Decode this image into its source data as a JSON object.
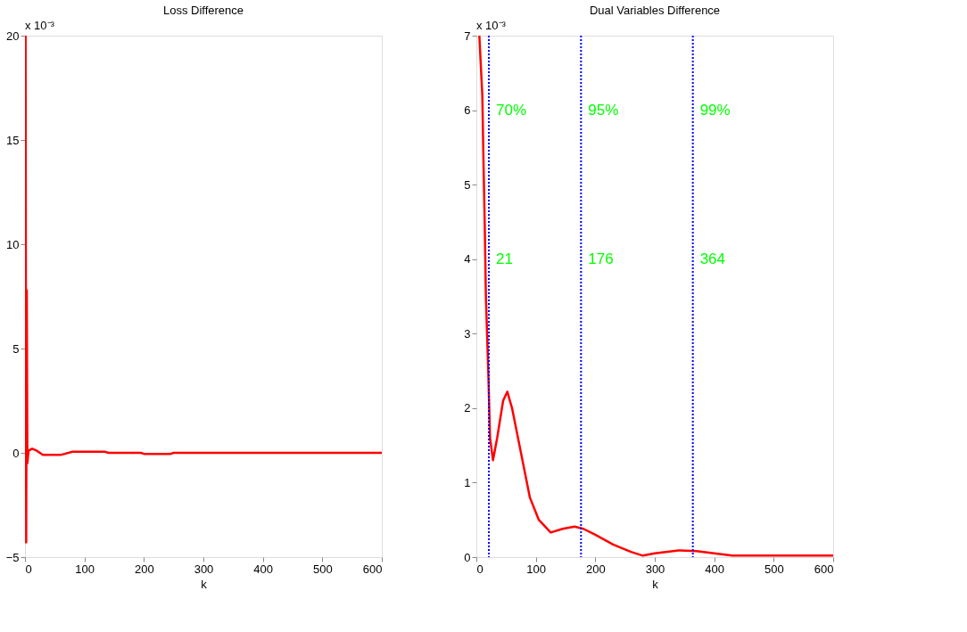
{
  "chart_data": [
    {
      "type": "line",
      "title": "Loss Difference",
      "xlabel": "k",
      "xlim": [
        0,
        600
      ],
      "xticks": [
        0,
        100,
        200,
        300,
        400,
        500,
        600
      ],
      "ylim": [
        -5,
        20
      ],
      "yticks": [
        -5,
        0,
        5,
        10,
        15,
        20
      ],
      "grid": false,
      "marker": "none",
      "line_style": "solid",
      "annotations": [
        "x 10⁻³"
      ],
      "series": [
        {
          "color": "#ff0000",
          "x": [
            0,
            1,
            2,
            3,
            4,
            6,
            12,
            20,
            30,
            60,
            80,
            135,
            140,
            195,
            200,
            245,
            250,
            600
          ],
          "values": [
            20,
            20,
            -4.3,
            7.8,
            -0.5,
            0.1,
            0.2,
            0.1,
            -0.1,
            -0.1,
            0.05,
            0.05,
            0,
            0,
            -0.05,
            -0.05,
            0,
            0
          ]
        }
      ]
    },
    {
      "type": "line",
      "title": "Dual Variables Difference",
      "xlabel": "k",
      "xlim": [
        0,
        600
      ],
      "xticks": [
        0,
        100,
        200,
        300,
        400,
        500,
        600
      ],
      "ylim": [
        0,
        7
      ],
      "yticks": [
        0,
        1,
        2,
        3,
        4,
        5,
        6,
        7
      ],
      "grid": false,
      "marker": "none",
      "line_style": "solid",
      "annotations": [
        "x 10⁻³",
        {
          "text": "70%",
          "x": 21,
          "y": 6
        },
        {
          "text": "95%",
          "x": 176,
          "y": 6
        },
        {
          "text": "99%",
          "x": 364,
          "y": 6
        }
      ],
      "ref_lines": [
        {
          "axis": "x",
          "value": 21,
          "label": "21",
          "color": "#0000ff",
          "line_style": "dotted"
        },
        {
          "axis": "x",
          "value": 176,
          "label": "176",
          "color": "#0000ff",
          "line_style": "dotted"
        },
        {
          "axis": "x",
          "value": 364,
          "label": "364",
          "color": "#0000ff",
          "line_style": "dotted"
        }
      ],
      "series": [
        {
          "color": "#ff0000",
          "x": [
            5,
            10,
            12,
            14,
            16,
            20,
            23,
            28,
            35,
            45,
            52,
            60,
            75,
            90,
            105,
            125,
            145,
            165,
            180,
            200,
            230,
            260,
            280,
            300,
            340,
            370,
            400,
            430,
            500,
            600
          ],
          "values": [
            7,
            6.2,
            5.3,
            4.5,
            3.5,
            2.5,
            1.6,
            1.3,
            1.6,
            2.1,
            2.22,
            2.0,
            1.4,
            0.8,
            0.5,
            0.33,
            0.38,
            0.41,
            0.38,
            0.3,
            0.17,
            0.07,
            0.02,
            0.05,
            0.09,
            0.08,
            0.05,
            0.02,
            0.02,
            0.02
          ]
        }
      ]
    }
  ]
}
